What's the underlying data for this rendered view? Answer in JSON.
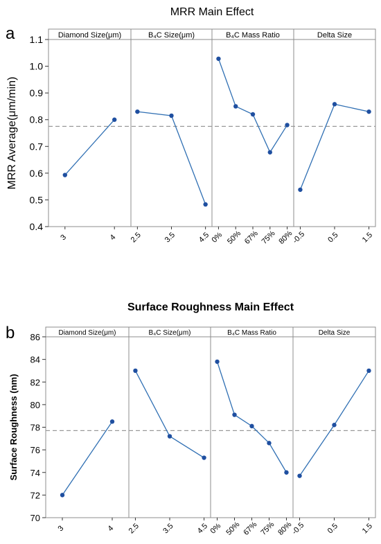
{
  "figure": {
    "panel_a_letter": "a",
    "panel_b_letter": "b"
  },
  "chart_data": [
    {
      "type": "line",
      "title": "MRR Main Effect",
      "ylabel": "MRR Average(μm/min)",
      "ylim": [
        0.4,
        1.1
      ],
      "yticks": [
        "0.4",
        "0.5",
        "0.6",
        "0.7",
        "0.8",
        "0.9",
        "1.0",
        "1.1"
      ],
      "mean_line": 0.775,
      "grid": false,
      "series_color": "#2f6fb3",
      "marker_color": "#1f4fa0",
      "mean_line_color": "#999999",
      "factors": [
        {
          "name": "Diamond Size(μm)",
          "categories": [
            "3",
            "4"
          ],
          "values": [
            0.593,
            0.8
          ]
        },
        {
          "name": "B₄C Size(μm)",
          "categories": [
            "2.5",
            "3.5",
            "4.5"
          ],
          "values": [
            0.83,
            0.815,
            0.483
          ]
        },
        {
          "name": "B₄C Mass Ratio",
          "categories": [
            "0%",
            "50%",
            "67%",
            "75%",
            "80%"
          ],
          "values": [
            1.028,
            0.85,
            0.82,
            0.678,
            0.78
          ]
        },
        {
          "name": "Delta Size",
          "categories": [
            "-0.5",
            "0.5",
            "1.5"
          ],
          "values": [
            0.538,
            0.858,
            0.83
          ]
        }
      ]
    },
    {
      "type": "line",
      "title": "Surface Roughness Main Effect",
      "ylabel": "Surface Roughness (nm)",
      "ylim": [
        70,
        86
      ],
      "yticks": [
        "70",
        "72",
        "74",
        "76",
        "78",
        "80",
        "82",
        "84",
        "86"
      ],
      "mean_line": 77.7,
      "grid": false,
      "series_color": "#2f6fb3",
      "marker_color": "#1f4fa0",
      "mean_line_color": "#999999",
      "factors": [
        {
          "name": "Diamond Size(μm)",
          "categories": [
            "3",
            "4"
          ],
          "values": [
            72.0,
            78.5
          ]
        },
        {
          "name": "B₄C Size(μm)",
          "categories": [
            "2.5",
            "3.5",
            "4.5"
          ],
          "values": [
            83.0,
            77.2,
            75.3
          ]
        },
        {
          "name": "B₄C Mass Ratio",
          "categories": [
            "0%",
            "50%",
            "67%",
            "75%",
            "80%"
          ],
          "values": [
            83.8,
            79.1,
            78.1,
            76.6,
            74.0
          ]
        },
        {
          "name": "Delta Size",
          "categories": [
            "-0.5",
            "0.5",
            "1.5"
          ],
          "values": [
            73.7,
            78.2,
            83.0
          ]
        }
      ]
    }
  ]
}
